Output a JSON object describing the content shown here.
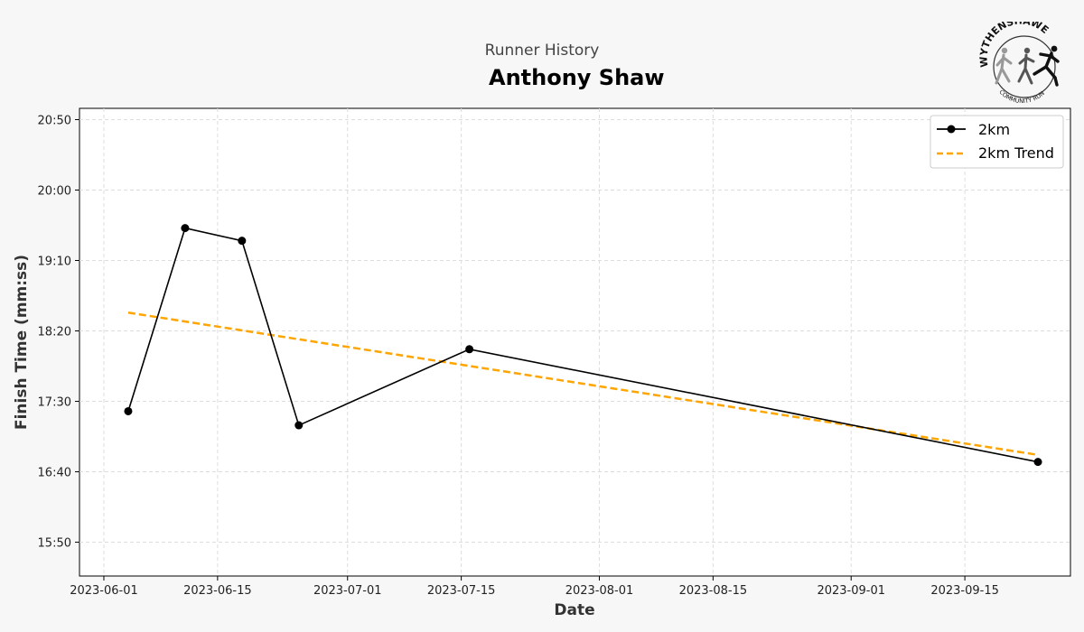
{
  "header": {
    "subtitle": "Runner History",
    "title": "Anthony Shaw"
  },
  "logo": {
    "icon": "wythenshawe-community-run-logo",
    "top_text": "WYTHENSHAWE",
    "bottom_text": "COMMUNITY RUN"
  },
  "colors": {
    "series": "#000000",
    "trend": "#ffa500",
    "background": "#f7f7f7"
  },
  "chart_data": {
    "type": "line",
    "xlabel": "Date",
    "ylabel": "Finish Time (mm:ss)",
    "x_ticks": [
      "2023-06-01",
      "2023-06-15",
      "2023-07-01",
      "2023-07-15",
      "2023-08-01",
      "2023-08-15",
      "2023-09-01",
      "2023-09-15"
    ],
    "y_ticks": [
      "15:50",
      "16:40",
      "17:30",
      "18:20",
      "19:10",
      "20:00",
      "20:50"
    ],
    "xlim": [
      "2023-05-29",
      "2023-09-28"
    ],
    "ylim": [
      "15:26",
      "20:58"
    ],
    "grid": true,
    "legend_position": "top-right",
    "series": [
      {
        "name": "2km",
        "style": "solid-line-with-markers",
        "points": [
          {
            "x": "2023-06-04",
            "y": "17:23"
          },
          {
            "x": "2023-06-11",
            "y": "19:33"
          },
          {
            "x": "2023-06-18",
            "y": "19:24"
          },
          {
            "x": "2023-06-25",
            "y": "17:13"
          },
          {
            "x": "2023-07-16",
            "y": "18:07"
          },
          {
            "x": "2023-09-24",
            "y": "16:47"
          }
        ]
      },
      {
        "name": "2km Trend",
        "style": "dashed-line",
        "points": [
          {
            "x": "2023-06-04",
            "y": "18:33"
          },
          {
            "x": "2023-09-24",
            "y": "16:52"
          }
        ]
      }
    ]
  }
}
